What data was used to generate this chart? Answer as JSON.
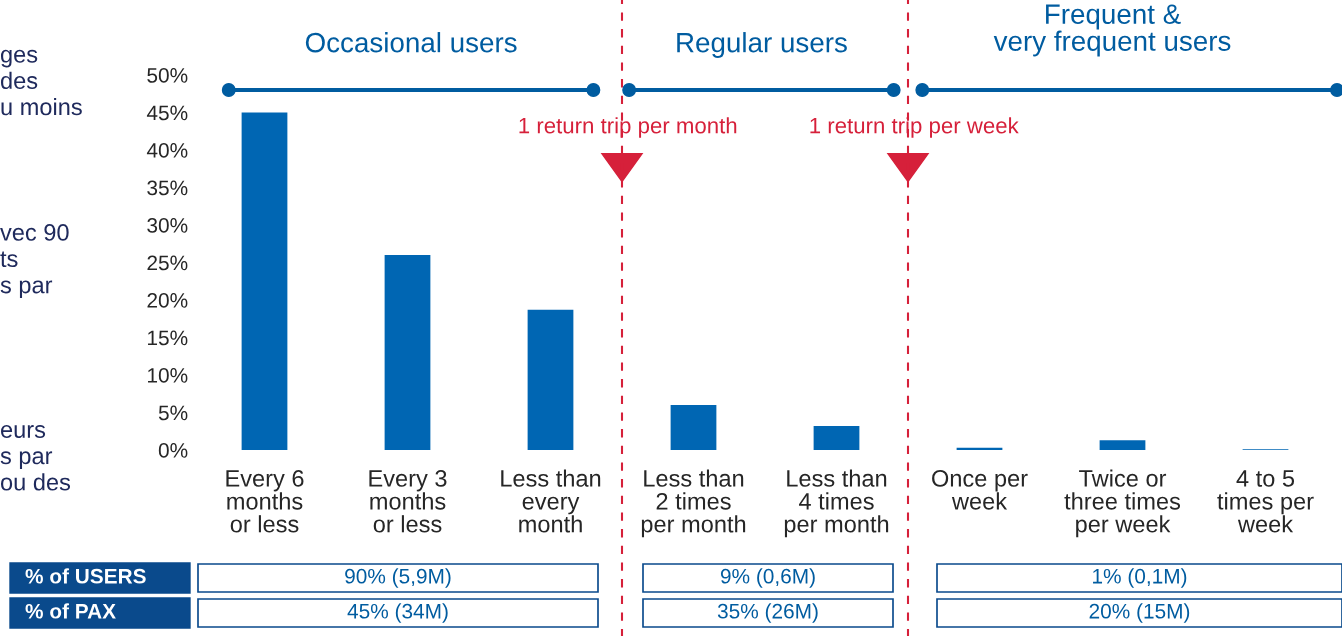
{
  "chart_data": {
    "type": "bar",
    "categories": [
      "Every 6\nmonths\nor less",
      "Every 3\nmonths\nor less",
      "Less than\nevery\nmonth",
      "Less than\n2 times\nper month",
      "Less than\n4 times\nper month",
      "Once per\nweek",
      "Twice or\nthree times\nper week",
      "4 to 5\ntimes per\nweek"
    ],
    "values": [
      45,
      26,
      18.7,
      6,
      3.2,
      0.3,
      1.3,
      0.1
    ],
    "color": "#0066b3",
    "ylim": [
      0,
      50
    ],
    "yticks": [
      {
        "value": 0,
        "label": "0%"
      },
      {
        "value": 5,
        "label": "5%"
      },
      {
        "value": 10,
        "label": "10%"
      },
      {
        "value": 15,
        "label": "15%"
      },
      {
        "value": 20,
        "label": "20%"
      },
      {
        "value": 25,
        "label": "25%"
      },
      {
        "value": 30,
        "label": "30%"
      },
      {
        "value": 35,
        "label": "35%"
      },
      {
        "value": 40,
        "label": "40%"
      },
      {
        "value": 45,
        "label": "45%"
      },
      {
        "value": 50,
        "label": "50%"
      }
    ],
    "grid": false,
    "annotations": [
      "Occasional users",
      "Regular users",
      "Frequent &\nvery frequent users",
      "ges\ndes\nu moins",
      "vec 90\nts\ns par",
      "eurs\ns par\nou des",
      "% of USERS",
      "90% (5,9M)",
      "9% (0,6M)",
      "1% (0,1M)",
      "% of PAX",
      "45% (34M)",
      "35% (26M)",
      "20% (15M)",
      "1 return trip per month",
      "1 return trip per week"
    ]
  }
}
